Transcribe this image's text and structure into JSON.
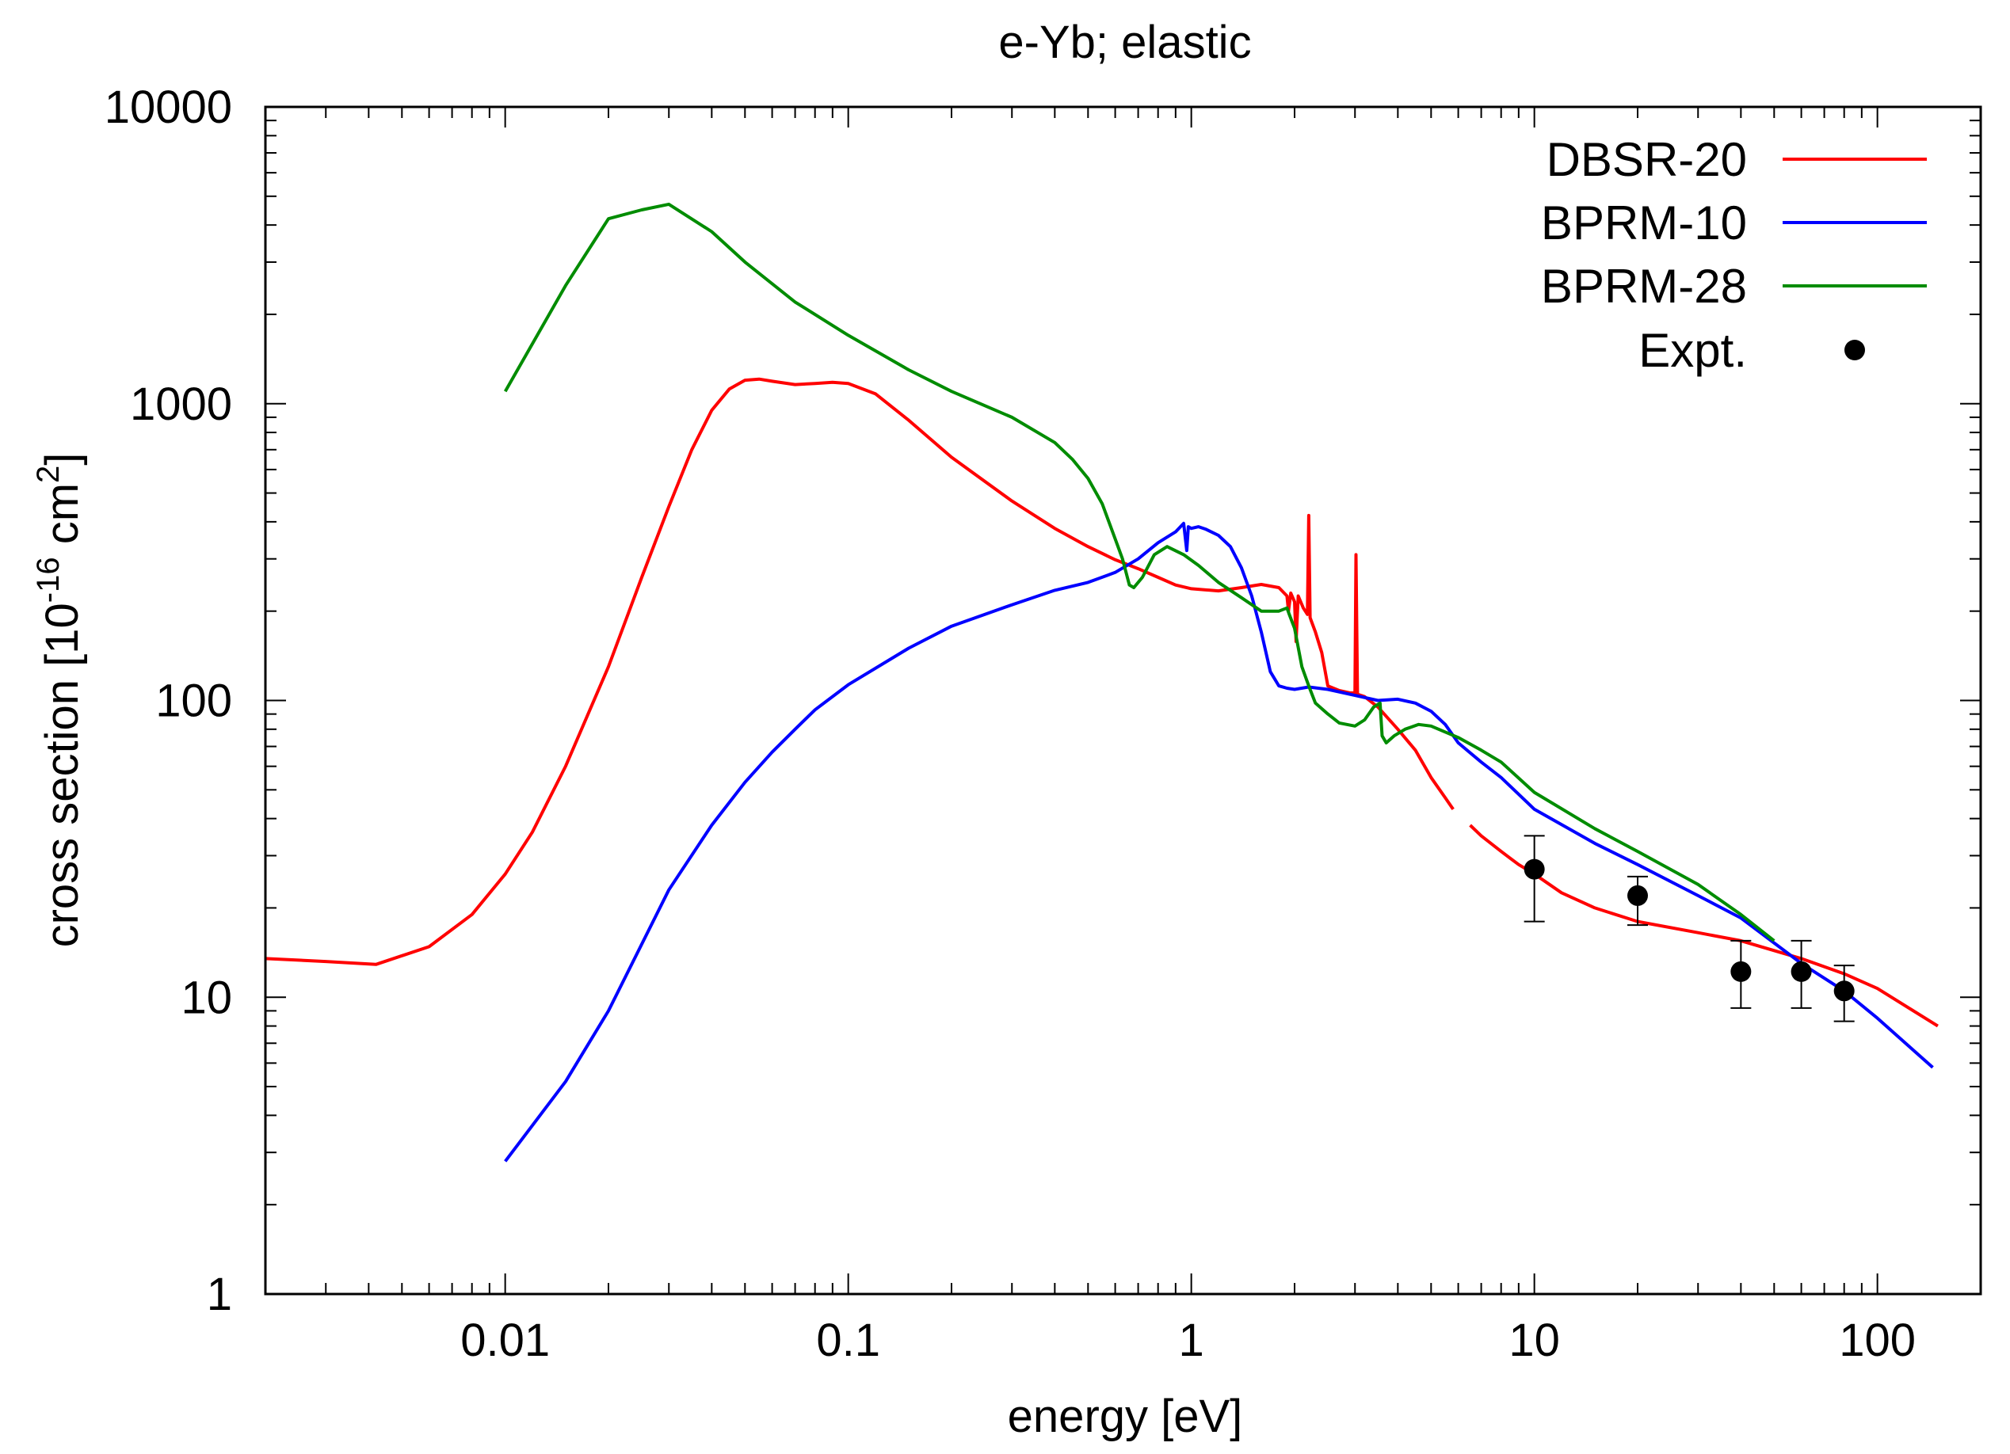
{
  "chart_data": {
    "type": "line",
    "title": "e-Yb; elastic",
    "xlabel": "energy [eV]",
    "ylabel": {
      "prefix": "cross section [10",
      "exp1": "-16",
      "mid": " cm",
      "exp2": "2",
      "suffix": "]"
    },
    "xscale": "log",
    "yscale": "log",
    "xlim": [
      0.002,
      200
    ],
    "ylim": [
      1,
      10000
    ],
    "x_ticks": [
      {
        "value": 0.01,
        "label": "0.01"
      },
      {
        "value": 0.1,
        "label": "0.1"
      },
      {
        "value": 1,
        "label": "1"
      },
      {
        "value": 10,
        "label": "10"
      },
      {
        "value": 100,
        "label": "100"
      }
    ],
    "y_ticks": [
      {
        "value": 1,
        "label": "1"
      },
      {
        "value": 10,
        "label": "10"
      },
      {
        "value": 100,
        "label": "100"
      },
      {
        "value": 1000,
        "label": "1000"
      },
      {
        "value": 10000,
        "label": "10000"
      }
    ],
    "legend_position": "top-right",
    "series": [
      {
        "name": "DBSR-20",
        "color": "#ff0000",
        "points": [
          [
            0.002,
            13.5
          ],
          [
            0.003,
            13.2
          ],
          [
            0.0042,
            12.9
          ],
          [
            0.006,
            14.8
          ],
          [
            0.008,
            19
          ],
          [
            0.01,
            26
          ],
          [
            0.012,
            36
          ],
          [
            0.015,
            60
          ],
          [
            0.02,
            130
          ],
          [
            0.025,
            260
          ],
          [
            0.03,
            450
          ],
          [
            0.035,
            700
          ],
          [
            0.04,
            950
          ],
          [
            0.045,
            1120
          ],
          [
            0.05,
            1200
          ],
          [
            0.055,
            1210
          ],
          [
            0.06,
            1190
          ],
          [
            0.07,
            1160
          ],
          [
            0.08,
            1170
          ],
          [
            0.09,
            1180
          ],
          [
            0.1,
            1170
          ],
          [
            0.12,
            1080
          ],
          [
            0.15,
            880
          ],
          [
            0.2,
            660
          ],
          [
            0.3,
            470
          ],
          [
            0.4,
            380
          ],
          [
            0.5,
            330
          ],
          [
            0.6,
            298
          ],
          [
            0.7,
            278
          ],
          [
            0.8,
            260
          ],
          [
            0.9,
            245
          ],
          [
            1.0,
            238
          ],
          [
            1.2,
            234
          ],
          [
            1.4,
            240
          ],
          [
            1.6,
            246
          ],
          [
            1.8,
            240
          ],
          [
            1.9,
            225
          ],
          [
            1.92,
            200
          ],
          [
            1.95,
            230
          ],
          [
            2.0,
            215
          ],
          [
            2.02,
            158
          ],
          [
            2.05,
            225
          ],
          [
            2.12,
            205
          ],
          [
            2.18,
            195
          ],
          [
            2.2,
            420
          ],
          [
            2.22,
            190
          ],
          [
            2.3,
            170
          ],
          [
            2.4,
            145
          ],
          [
            2.5,
            112
          ],
          [
            2.7,
            108
          ],
          [
            2.9,
            106
          ],
          [
            3.0,
            106
          ],
          [
            3.02,
            310
          ],
          [
            3.05,
            105
          ],
          [
            3.2,
            103
          ],
          [
            3.5,
            95
          ],
          [
            4.0,
            80
          ],
          [
            4.5,
            68
          ],
          [
            5.0,
            55
          ],
          [
            5.5,
            47
          ],
          [
            5.8,
            43
          ],
          null,
          [
            6.5,
            38
          ],
          [
            7,
            35
          ],
          [
            8,
            31
          ],
          [
            9,
            28
          ],
          [
            10,
            26
          ],
          [
            12,
            22.5
          ],
          [
            15,
            20
          ],
          [
            20,
            18
          ],
          [
            30,
            16.5
          ],
          [
            40,
            15.5
          ],
          [
            60,
            13.5
          ],
          [
            80,
            12
          ],
          [
            100,
            10.7
          ],
          [
            150,
            8
          ]
        ]
      },
      {
        "name": "BPRM-10",
        "color": "#0000ff",
        "points": [
          [
            0.01,
            2.8
          ],
          [
            0.015,
            5.2
          ],
          [
            0.02,
            9
          ],
          [
            0.03,
            23
          ],
          [
            0.04,
            38
          ],
          [
            0.05,
            53
          ],
          [
            0.06,
            67
          ],
          [
            0.07,
            80
          ],
          [
            0.08,
            93
          ],
          [
            0.1,
            113
          ],
          [
            0.15,
            150
          ],
          [
            0.2,
            178
          ],
          [
            0.3,
            210
          ],
          [
            0.4,
            235
          ],
          [
            0.5,
            250
          ],
          [
            0.6,
            270
          ],
          [
            0.7,
            300
          ],
          [
            0.8,
            340
          ],
          [
            0.9,
            370
          ],
          [
            0.95,
            395
          ],
          [
            0.97,
            320
          ],
          [
            0.98,
            385
          ],
          [
            1.0,
            380
          ],
          [
            1.05,
            385
          ],
          [
            1.1,
            378
          ],
          [
            1.2,
            360
          ],
          [
            1.3,
            330
          ],
          [
            1.4,
            280
          ],
          [
            1.5,
            225
          ],
          [
            1.6,
            170
          ],
          [
            1.7,
            125
          ],
          [
            1.8,
            112
          ],
          [
            1.9,
            110
          ],
          [
            2.0,
            109
          ],
          [
            2.2,
            111
          ],
          [
            2.5,
            109
          ],
          [
            3.0,
            104
          ],
          [
            3.5,
            100
          ],
          [
            4.0,
            101
          ],
          [
            4.5,
            98
          ],
          [
            5.0,
            92
          ],
          [
            5.5,
            83
          ],
          [
            6,
            72
          ],
          [
            7,
            62
          ],
          [
            8,
            55
          ],
          [
            10,
            43
          ],
          [
            15,
            33
          ],
          [
            20,
            28
          ],
          [
            30,
            22
          ],
          [
            40,
            18.5
          ],
          [
            60,
            13
          ],
          [
            80,
            10.5
          ],
          [
            100,
            8.5
          ],
          [
            145,
            5.8
          ]
        ]
      },
      {
        "name": "BPRM-28",
        "color": "#008c00",
        "points": [
          [
            0.01,
            1100
          ],
          [
            0.015,
            2500
          ],
          [
            0.02,
            4200
          ],
          [
            0.025,
            4500
          ],
          [
            0.03,
            4700
          ],
          [
            0.04,
            3800
          ],
          [
            0.05,
            3000
          ],
          [
            0.07,
            2200
          ],
          [
            0.1,
            1700
          ],
          [
            0.15,
            1300
          ],
          [
            0.2,
            1100
          ],
          [
            0.3,
            900
          ],
          [
            0.4,
            740
          ],
          [
            0.45,
            650
          ],
          [
            0.5,
            560
          ],
          [
            0.55,
            460
          ],
          [
            0.6,
            350
          ],
          [
            0.63,
            300
          ],
          [
            0.66,
            245
          ],
          [
            0.68,
            240
          ],
          [
            0.72,
            260
          ],
          [
            0.78,
            310
          ],
          [
            0.85,
            330
          ],
          [
            0.95,
            310
          ],
          [
            1.05,
            285
          ],
          [
            1.2,
            250
          ],
          [
            1.4,
            222
          ],
          [
            1.6,
            200
          ],
          [
            1.8,
            200
          ],
          [
            1.9,
            205
          ],
          [
            1.93,
            195
          ],
          [
            2.0,
            175
          ],
          [
            2.1,
            130
          ],
          [
            2.2,
            112
          ],
          [
            2.3,
            98
          ],
          [
            2.5,
            90
          ],
          [
            2.7,
            84
          ],
          [
            3.0,
            82
          ],
          [
            3.2,
            86
          ],
          [
            3.4,
            95
          ],
          [
            3.55,
            98
          ],
          [
            3.6,
            76
          ],
          [
            3.7,
            72
          ],
          [
            3.9,
            76
          ],
          [
            4.2,
            80
          ],
          [
            4.6,
            83
          ],
          [
            5,
            82
          ],
          [
            6,
            75
          ],
          [
            7,
            68
          ],
          [
            8,
            62
          ],
          [
            10,
            49
          ],
          [
            15,
            37
          ],
          [
            20,
            31
          ],
          [
            30,
            24
          ],
          [
            40,
            19
          ],
          [
            50,
            15.5
          ]
        ]
      }
    ],
    "experiment": {
      "name": "Expt.",
      "color": "#000000",
      "points": [
        {
          "x": 10,
          "y": 27,
          "lo": 18,
          "hi": 35
        },
        {
          "x": 20,
          "y": 22,
          "lo": 17.5,
          "hi": 25.5
        },
        {
          "x": 40,
          "y": 12.2,
          "lo": 9.2,
          "hi": 15.5
        },
        {
          "x": 60,
          "y": 12.2,
          "lo": 9.2,
          "hi": 15.5
        },
        {
          "x": 80,
          "y": 10.5,
          "lo": 8.3,
          "hi": 12.8
        }
      ]
    }
  }
}
